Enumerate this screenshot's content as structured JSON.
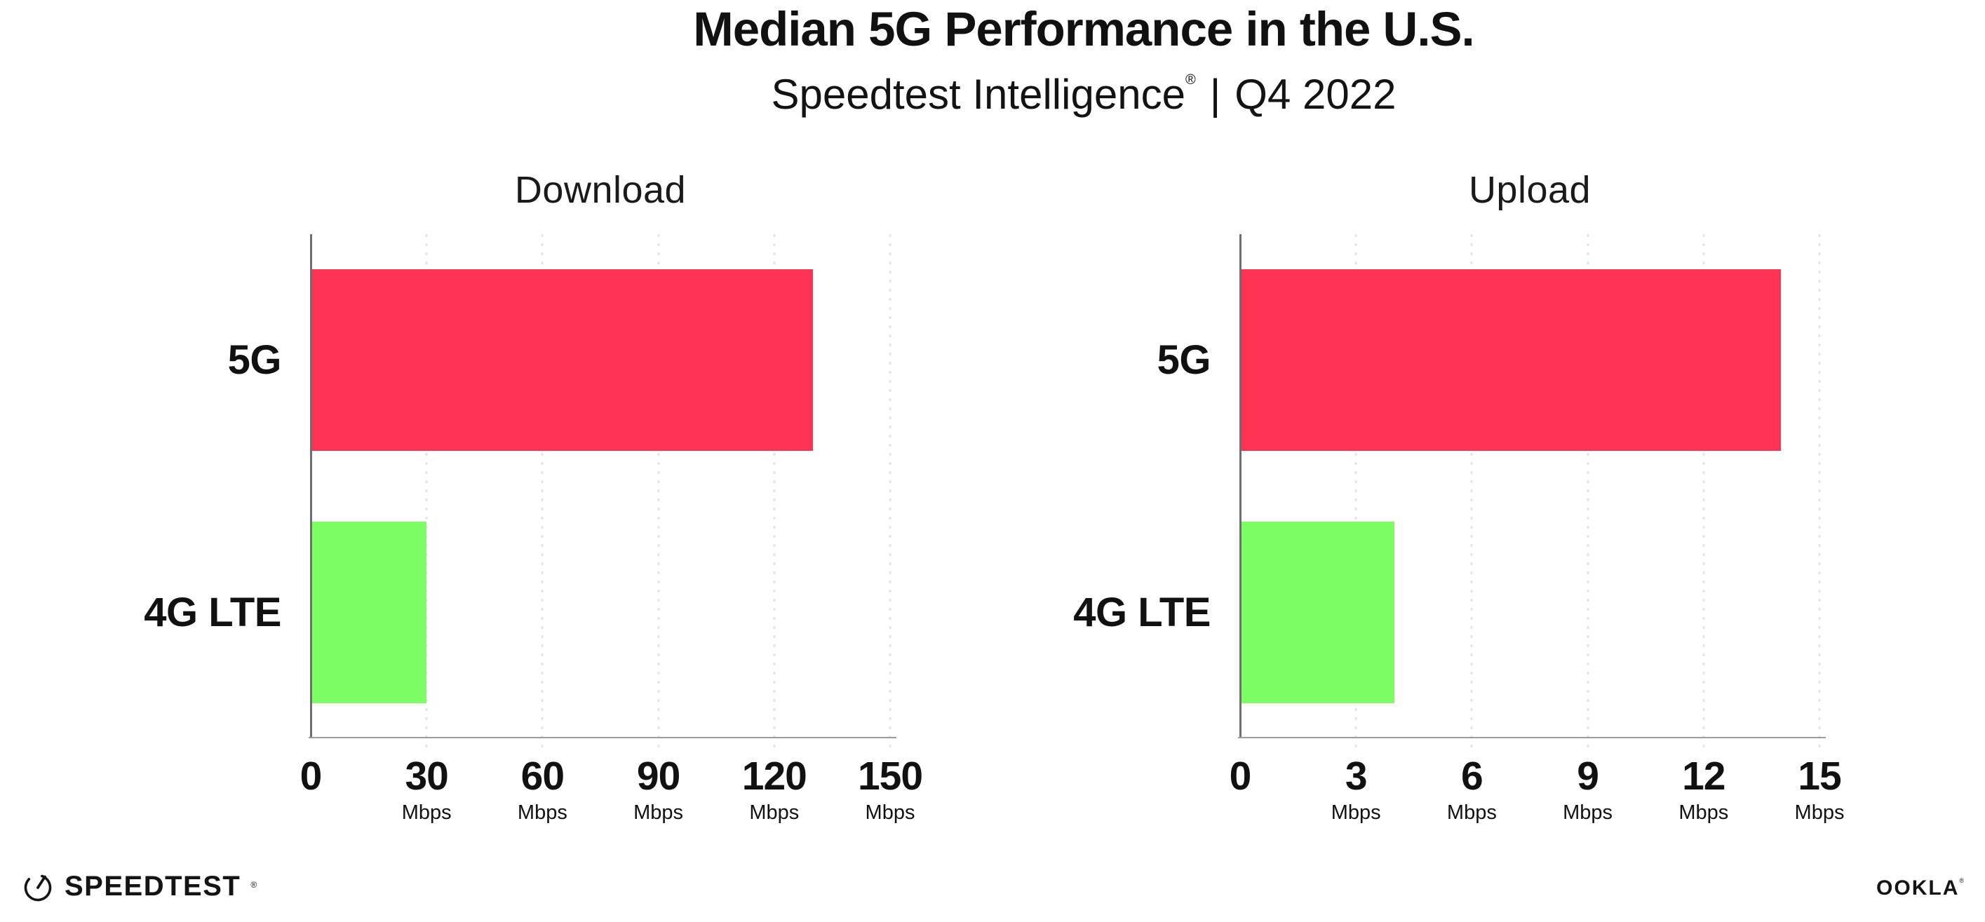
{
  "header": {
    "title": "Median 5G Performance in the U.S.",
    "subtitle_brand": "Speedtest Intelligence",
    "subtitle_reg": "®",
    "subtitle_separator": "|",
    "subtitle_period": "Q4 2022"
  },
  "chart_data": [
    {
      "type": "bar",
      "orientation": "horizontal",
      "title": "Download",
      "categories": [
        "5G",
        "4G LTE"
      ],
      "values": [
        130,
        30
      ],
      "unit": "Mbps",
      "xlim": [
        0,
        150
      ],
      "xticks": [
        0,
        30,
        60,
        90,
        120,
        150
      ],
      "tick_unit": "Mbps",
      "bar_colors": [
        "#FF3254",
        "#7DFD64"
      ],
      "grid": "dotted-vertical",
      "legend": "none"
    },
    {
      "type": "bar",
      "orientation": "horizontal",
      "title": "Upload",
      "categories": [
        "5G",
        "4G LTE"
      ],
      "values": [
        14,
        4
      ],
      "unit": "Mbps",
      "xlim": [
        0,
        15
      ],
      "xticks": [
        0,
        3,
        6,
        9,
        12,
        15
      ],
      "tick_unit": "Mbps",
      "bar_colors": [
        "#FF3254",
        "#7DFD64"
      ],
      "grid": "dotted-vertical",
      "legend": "none"
    }
  ],
  "footer": {
    "speedtest_label": "SPEEDTEST",
    "speedtest_reg": "®",
    "ookla_label": "OOKLA",
    "ookla_reg": "®"
  },
  "colors": {
    "bar_5g": "#FF3254",
    "bar_4g_lte": "#7DFD64",
    "gridline": "#E3E3EC",
    "y_axis_line": "#6E6E6E",
    "x_axis_line": "#9C9C9C",
    "text": "#111111"
  }
}
